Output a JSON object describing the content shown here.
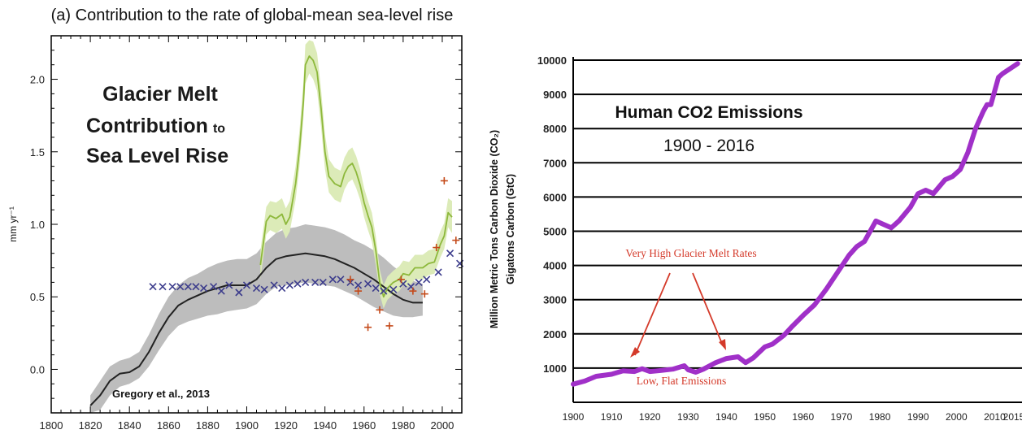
{
  "chart_data": [
    {
      "type": "line",
      "title": "(a) Contribution to the rate of global-mean sea-level rise",
      "ylabel": "mm yr⁻¹",
      "xlim": [
        1800,
        2010
      ],
      "ylim": [
        -0.3,
        2.3
      ],
      "x_ticks": [
        1800,
        1820,
        1840,
        1860,
        1880,
        1900,
        1920,
        1940,
        1960,
        1980,
        2000
      ],
      "y_ticks": [
        0.0,
        0.5,
        1.0,
        1.5,
        2.0
      ],
      "y_tick_labels": [
        "0.0",
        "0.5",
        "1.0",
        "1.5",
        "2.0"
      ],
      "overlay_title": [
        "Glacier Melt",
        "Contribution",
        "to",
        "Sea Level Rise"
      ],
      "citation": "Gregory et al., 2013",
      "colors": {
        "black_line": "#222222",
        "gray_band": "#bdbdbd",
        "green_line": "#8db83b",
        "green_band": "#dcebb8",
        "blue_x": "#3c3c8c",
        "red_plus": "#c44a1a"
      },
      "series": [
        {
          "style": "black-line-with-gray-band",
          "x": [
            1820,
            1825,
            1830,
            1835,
            1840,
            1845,
            1850,
            1855,
            1860,
            1865,
            1870,
            1875,
            1880,
            1885,
            1890,
            1895,
            1900,
            1905,
            1910,
            1915,
            1920,
            1925,
            1930,
            1935,
            1940,
            1945,
            1950,
            1955,
            1960,
            1965,
            1970,
            1975,
            1980,
            1985,
            1990
          ],
          "y": [
            -0.25,
            -0.18,
            -0.08,
            -0.03,
            -0.02,
            0.02,
            0.12,
            0.25,
            0.36,
            0.44,
            0.48,
            0.51,
            0.54,
            0.56,
            0.58,
            0.58,
            0.58,
            0.62,
            0.7,
            0.76,
            0.78,
            0.79,
            0.8,
            0.79,
            0.78,
            0.76,
            0.73,
            0.7,
            0.66,
            0.62,
            0.57,
            0.52,
            0.48,
            0.46,
            0.46
          ],
          "lower": [
            -0.3,
            -0.28,
            -0.18,
            -0.12,
            -0.1,
            -0.06,
            0.02,
            0.13,
            0.23,
            0.3,
            0.33,
            0.35,
            0.37,
            0.38,
            0.4,
            0.41,
            0.42,
            0.45,
            0.52,
            0.57,
            0.58,
            0.59,
            0.6,
            0.59,
            0.58,
            0.57,
            0.54,
            0.51,
            0.47,
            0.43,
            0.4,
            0.37,
            0.36,
            0.36,
            0.37
          ],
          "upper": [
            -0.18,
            -0.08,
            0.02,
            0.06,
            0.08,
            0.12,
            0.24,
            0.38,
            0.5,
            0.58,
            0.63,
            0.66,
            0.7,
            0.73,
            0.75,
            0.76,
            0.76,
            0.8,
            0.88,
            0.94,
            0.97,
            0.98,
            1.0,
            0.99,
            0.98,
            0.96,
            0.93,
            0.89,
            0.86,
            0.82,
            0.77,
            0.71,
            0.66,
            0.61,
            0.59
          ]
        },
        {
          "style": "green-line-with-band",
          "x": [
            1907,
            1910,
            1912,
            1915,
            1918,
            1920,
            1922,
            1925,
            1927,
            1929,
            1930,
            1932,
            1934,
            1936,
            1938,
            1940,
            1942,
            1945,
            1948,
            1950,
            1952,
            1954,
            1956,
            1958,
            1960,
            1962,
            1964,
            1966,
            1968,
            1970,
            1972,
            1975,
            1978,
            1980,
            1983,
            1986,
            1990,
            1993,
            1996,
            1999,
            2001,
            2003,
            2005
          ],
          "y": [
            0.72,
            1.02,
            1.06,
            1.04,
            1.07,
            1.0,
            1.05,
            1.28,
            1.52,
            1.85,
            2.1,
            2.16,
            2.13,
            2.05,
            1.8,
            1.5,
            1.33,
            1.28,
            1.26,
            1.35,
            1.4,
            1.42,
            1.36,
            1.27,
            1.15,
            1.06,
            0.98,
            0.82,
            0.6,
            0.5,
            0.56,
            0.6,
            0.62,
            0.66,
            0.65,
            0.7,
            0.7,
            0.73,
            0.74,
            0.86,
            0.92,
            1.08,
            1.05
          ],
          "lower": [
            0.62,
            0.93,
            0.96,
            0.94,
            0.97,
            0.9,
            0.95,
            1.17,
            1.4,
            1.73,
            1.97,
            2.04,
            2.0,
            1.92,
            1.67,
            1.38,
            1.22,
            1.17,
            1.15,
            1.24,
            1.29,
            1.31,
            1.25,
            1.17,
            1.05,
            0.96,
            0.88,
            0.72,
            0.52,
            0.42,
            0.48,
            0.52,
            0.54,
            0.58,
            0.57,
            0.62,
            0.62,
            0.65,
            0.66,
            0.77,
            0.83,
            0.98,
            0.94
          ],
          "upper": [
            0.82,
            1.12,
            1.16,
            1.15,
            1.18,
            1.11,
            1.16,
            1.4,
            1.65,
            1.98,
            2.24,
            2.27,
            2.26,
            2.18,
            1.93,
            1.62,
            1.45,
            1.39,
            1.37,
            1.46,
            1.51,
            1.53,
            1.47,
            1.38,
            1.25,
            1.16,
            1.08,
            0.92,
            0.69,
            0.58,
            0.64,
            0.68,
            0.71,
            0.75,
            0.74,
            0.79,
            0.79,
            0.82,
            0.83,
            0.95,
            1.01,
            1.18,
            1.16
          ]
        },
        {
          "style": "blue-x-markers",
          "x": [
            1852,
            1857,
            1862,
            1866,
            1870,
            1874,
            1878,
            1883,
            1887,
            1891,
            1896,
            1900,
            1905,
            1909,
            1914,
            1918,
            1922,
            1926,
            1930,
            1935,
            1939,
            1944,
            1948,
            1953,
            1957,
            1962,
            1966,
            1970,
            1975,
            1980,
            1984,
            1988,
            1992,
            1998,
            2004,
            2009
          ],
          "y": [
            0.57,
            0.57,
            0.57,
            0.57,
            0.57,
            0.57,
            0.56,
            0.57,
            0.54,
            0.58,
            0.53,
            0.58,
            0.56,
            0.55,
            0.58,
            0.56,
            0.58,
            0.59,
            0.6,
            0.6,
            0.6,
            0.62,
            0.62,
            0.6,
            0.58,
            0.59,
            0.56,
            0.54,
            0.55,
            0.59,
            0.57,
            0.6,
            0.62,
            0.67,
            0.8,
            0.73
          ]
        },
        {
          "style": "red-plus-markers",
          "x": [
            1953,
            1957,
            1962,
            1968,
            1973,
            1979,
            1985,
            1991,
            1997,
            2001,
            2007
          ],
          "y": [
            0.62,
            0.54,
            0.29,
            0.41,
            0.3,
            0.62,
            0.54,
            0.52,
            0.84,
            1.3,
            0.89
          ]
        }
      ]
    },
    {
      "type": "line",
      "title": "Human CO2 Emissions",
      "subtitle": "1900 - 2016",
      "ylabel": "Million Metric Tons Carbon Dioxide (CO₂)",
      "ylabel2": "Gigatons Carbon (GtC)",
      "xlim": [
        1900,
        2016
      ],
      "ylim": [
        0,
        10000
      ],
      "x_ticks": [
        1900,
        1910,
        1920,
        1930,
        1940,
        1950,
        1960,
        1970,
        1980,
        1990,
        2000,
        2010,
        2015
      ],
      "y_ticks": [
        1000,
        2000,
        3000,
        4000,
        5000,
        6000,
        7000,
        8000,
        9000,
        10000
      ],
      "annotation_high": "Very High Glacier Melt Rates",
      "annotation_low": "Low, Flat Emissions",
      "colors": {
        "line": "#a030c8",
        "annotation": "#d43a2a",
        "grid": "#000000"
      },
      "series": [
        {
          "x": [
            1900,
            1903,
            1906,
            1910,
            1913,
            1916,
            1918,
            1920,
            1923,
            1926,
            1929,
            1930,
            1932,
            1934,
            1937,
            1940,
            1943,
            1945,
            1947,
            1950,
            1952,
            1955,
            1957,
            1960,
            1963,
            1966,
            1969,
            1972,
            1974,
            1976,
            1979,
            1981,
            1983,
            1985,
            1988,
            1990,
            1992,
            1994,
            1997,
            1999,
            2001,
            2003,
            2005,
            2007,
            2008,
            2009,
            2010,
            2011,
            2012,
            2014,
            2016
          ],
          "y": [
            530,
            620,
            760,
            820,
            920,
            900,
            980,
            900,
            930,
            970,
            1070,
            950,
            880,
            970,
            1150,
            1280,
            1330,
            1160,
            1300,
            1620,
            1700,
            1960,
            2200,
            2540,
            2850,
            3300,
            3800,
            4300,
            4550,
            4700,
            5300,
            5200,
            5100,
            5300,
            5700,
            6100,
            6200,
            6100,
            6500,
            6600,
            6800,
            7300,
            8000,
            8500,
            8700,
            8700,
            9100,
            9500,
            9600,
            9750,
            9900
          ]
        }
      ]
    }
  ]
}
